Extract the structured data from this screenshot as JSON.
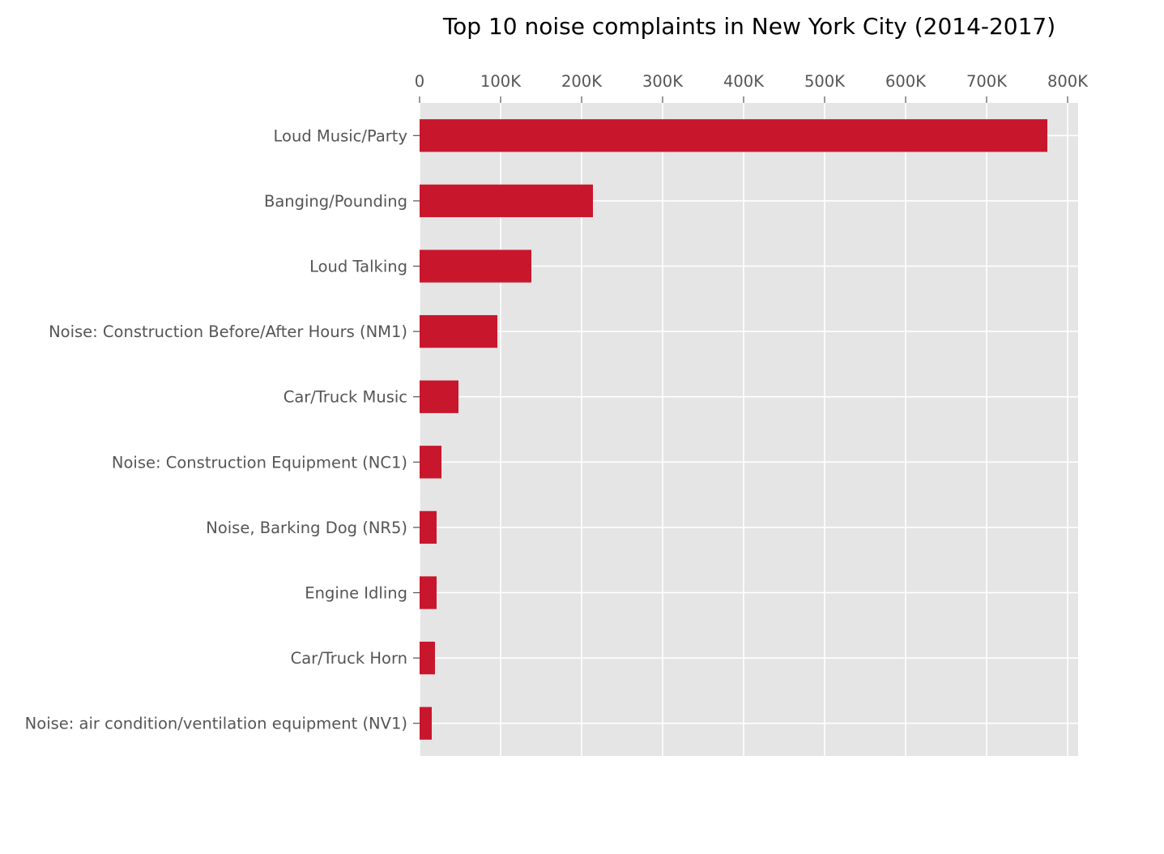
{
  "chart_data": {
    "type": "bar",
    "orientation": "horizontal",
    "title": "Top 10 noise complaints in New York City (2014-2017)",
    "xlabel": "",
    "ylabel": "",
    "categories": [
      "Loud Music/Party",
      "Banging/Pounding",
      "Loud Talking",
      "Noise: Construction Before/After Hours (NM1)",
      "Car/Truck Music",
      "Noise: Construction Equipment (NC1)",
      "Noise, Barking Dog (NR5)",
      "Engine Idling",
      "Car/Truck Horn",
      "Noise: air condition/ventilation equipment (NV1)"
    ],
    "values": [
      775000,
      214000,
      138000,
      96000,
      48000,
      27000,
      21000,
      21000,
      19000,
      15000
    ],
    "xlim": [
      0,
      813000
    ],
    "xticks": [
      0,
      100000,
      200000,
      300000,
      400000,
      500000,
      600000,
      700000,
      800000
    ],
    "xtick_labels": [
      "0",
      "100K",
      "200K",
      "300K",
      "400K",
      "500K",
      "600K",
      "700K",
      "800K"
    ],
    "x_axis_position": "top",
    "grid": true,
    "style": "ggplot",
    "bar_color": "#C8172C",
    "background_color": "#E5E5E5",
    "grid_color": "#FFFFFF",
    "text_color": "#555555",
    "title_color": "#000000"
  }
}
